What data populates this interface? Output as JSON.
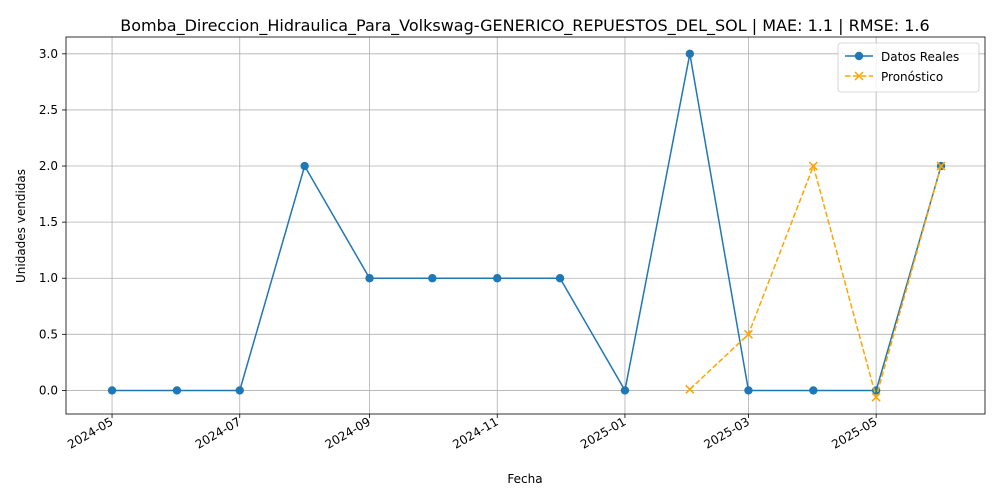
{
  "chart_data": {
    "type": "line",
    "title": "Bomba_Direccion_Hidraulica_Para_Volkswag-GENERICO_REPUESTOS_DEL_SOL | MAE: 1.1 | RMSE: 1.6",
    "xlabel": "Fecha",
    "ylabel": "Unidades vendidas",
    "xlim": [
      "2024-04-09",
      "2025-06-22"
    ],
    "ylim": [
      -0.21,
      3.15
    ],
    "grid": true,
    "legend_position": "top-right",
    "x_ticks": [
      "2024-05",
      "2024-07",
      "2024-09",
      "2024-11",
      "2025-01",
      "2025-03",
      "2025-05"
    ],
    "y_ticks": [
      "0.0",
      "0.5",
      "1.0",
      "1.5",
      "2.0",
      "2.5",
      "3.0"
    ],
    "series": [
      {
        "name": "Datos Reales",
        "color": "#1f77b4",
        "marker": "circle",
        "linestyle": "solid",
        "x": [
          "2024-05-01",
          "2024-06-01",
          "2024-07-01",
          "2024-08-01",
          "2024-09-01",
          "2024-10-01",
          "2024-11-01",
          "2024-12-01",
          "2025-01-01",
          "2025-02-01",
          "2025-03-01",
          "2025-04-01",
          "2025-05-01",
          "2025-06-01"
        ],
        "values": [
          0,
          0,
          0,
          2,
          1,
          1,
          1,
          1,
          0,
          3,
          0,
          0,
          0,
          2
        ]
      },
      {
        "name": "Pronóstico",
        "color": "#ffa500",
        "marker": "x",
        "linestyle": "dashed",
        "x": [
          "2025-02-01",
          "2025-03-01",
          "2025-04-01",
          "2025-05-01",
          "2025-06-01"
        ],
        "values": [
          0.01,
          0.5,
          2.0,
          -0.06,
          2.0
        ]
      }
    ]
  }
}
